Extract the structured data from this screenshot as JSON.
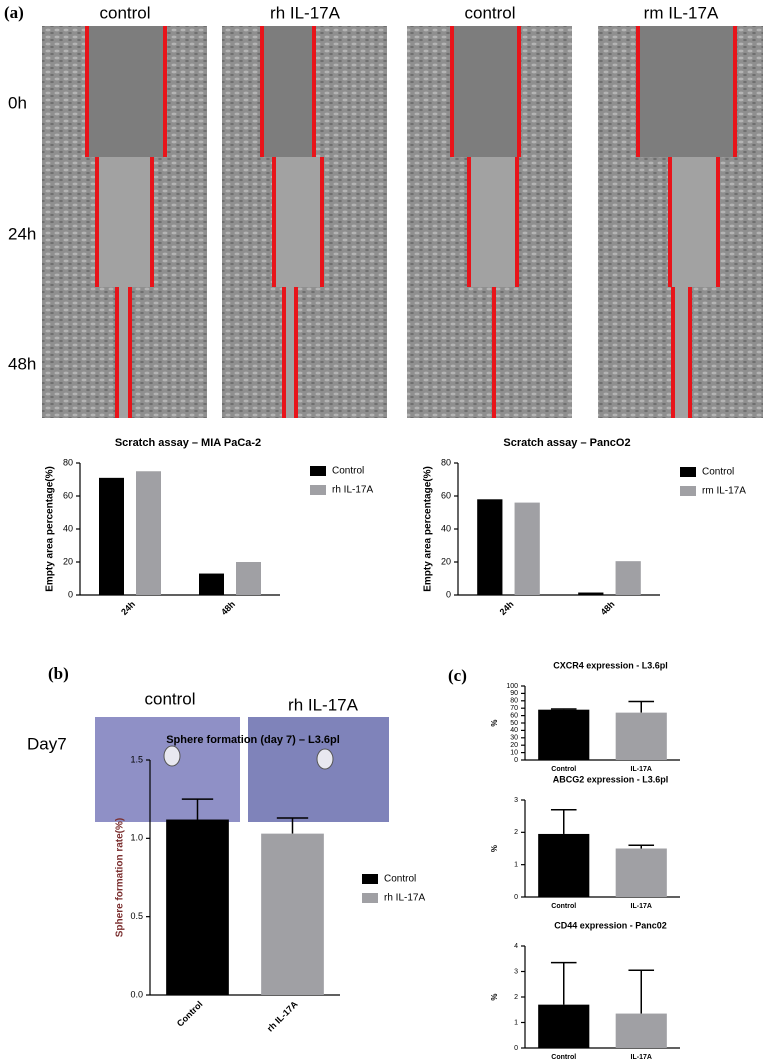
{
  "panels": {
    "a": {
      "label": "(a)",
      "columns": [
        "control",
        "rh IL-17A",
        "control",
        "rm IL-17A"
      ],
      "rows": [
        "0h",
        "24h",
        "48h"
      ]
    },
    "b": {
      "label": "(b)",
      "columns": [
        "control",
        "rh IL-17A"
      ],
      "rows": [
        "Day7"
      ]
    },
    "c": {
      "label": "(c)"
    }
  },
  "chart_data": [
    {
      "type": "bar",
      "title": "Scratch assay – MIA PaCa-2",
      "ylabel": "Empty area percentage(%)",
      "categories": [
        "24h",
        "48h"
      ],
      "series": [
        {
          "name": "Control",
          "color": "#000000",
          "values": [
            71,
            13
          ]
        },
        {
          "name": "rh IL-17A",
          "color": "#a0a0a4",
          "values": [
            75,
            20
          ]
        }
      ],
      "ylim": [
        0,
        80
      ],
      "yticks": [
        0,
        20,
        40,
        60,
        80
      ]
    },
    {
      "type": "bar",
      "title": "Scratch assay – PancO2",
      "ylabel": "Empty area percentage(%)",
      "categories": [
        "24h",
        "48h"
      ],
      "series": [
        {
          "name": "Control",
          "color": "#000000",
          "values": [
            58,
            1.5
          ]
        },
        {
          "name": "rm IL-17A",
          "color": "#a0a0a4",
          "values": [
            56,
            20.5
          ]
        }
      ],
      "ylim": [
        0,
        80
      ],
      "yticks": [
        0,
        20,
        40,
        60,
        80
      ]
    },
    {
      "type": "bar",
      "title": "Sphere formation (day 7) – L3.6pl",
      "ylabel": "Sphere formation rate(%)",
      "ylabel_color": "#7a2e2e",
      "categories": [
        "Control",
        "rh IL-17A"
      ],
      "values": [
        1.12,
        1.03
      ],
      "errors": [
        0.13,
        0.1
      ],
      "colors": [
        "#000000",
        "#a0a0a4"
      ],
      "legend": [
        "Control",
        "rh IL-17A"
      ],
      "ylim": [
        0,
        1.5
      ],
      "yticks": [
        {
          "value": 0,
          "label": "0.0"
        },
        {
          "value": 0.5,
          "label": "0.5"
        },
        {
          "value": 1,
          "label": "1.0"
        },
        {
          "value": 1.5,
          "label": "1.5"
        }
      ]
    },
    {
      "type": "bar",
      "title": "CXCR4 expression - L3.6pl",
      "ylabel": "%",
      "categories": [
        "Control",
        "IL-17A"
      ],
      "values": [
        68,
        64
      ],
      "errors": [
        1,
        15
      ],
      "colors": [
        "#000000",
        "#a0a0a4"
      ],
      "ylim": [
        0,
        100
      ],
      "yticks": [
        0,
        10,
        20,
        30,
        40,
        50,
        60,
        70,
        80,
        90,
        100
      ]
    },
    {
      "type": "bar",
      "title": "ABCG2 expression - L3.6pl",
      "ylabel": "%",
      "categories": [
        "Control",
        "IL-17A"
      ],
      "values": [
        1.95,
        1.5
      ],
      "errors": [
        0.75,
        0.1
      ],
      "colors": [
        "#000000",
        "#a0a0a4"
      ],
      "ylim": [
        0,
        3
      ],
      "yticks": [
        0,
        1,
        2,
        3
      ]
    },
    {
      "type": "bar",
      "title": "CD44 expression - Panc02",
      "ylabel": "%",
      "categories": [
        "Control",
        "IL-17A"
      ],
      "values": [
        1.7,
        1.35
      ],
      "errors": [
        1.65,
        1.7
      ],
      "colors": [
        "#000000",
        "#a0a0a4"
      ],
      "ylim": [
        0,
        4
      ],
      "yticks": [
        0,
        1,
        2,
        3,
        4
      ]
    }
  ]
}
